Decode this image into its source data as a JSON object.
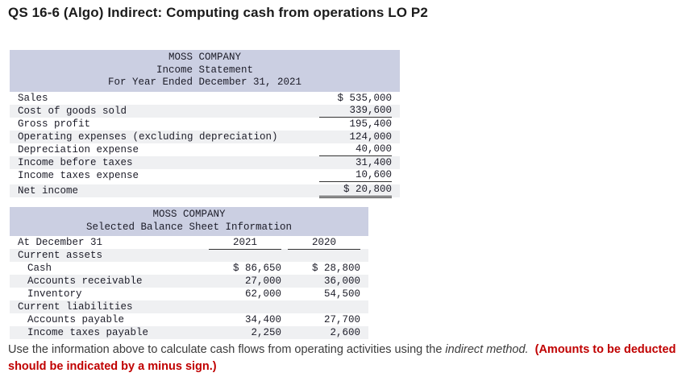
{
  "page": {
    "title": "QS 16-6 (Algo) Indirect: Computing cash from operations LO P2"
  },
  "income_statement": {
    "header": [
      "MOSS COMPANY",
      "Income Statement",
      "For Year Ended December 31, 2021"
    ],
    "rows": [
      {
        "label": "Sales",
        "value": "$ 535,000"
      },
      {
        "label": "Cost of goods sold",
        "value": "339,600"
      },
      {
        "label": "Gross profit",
        "value": "195,400"
      },
      {
        "label": "Operating expenses (excluding depreciation)",
        "value": "124,000"
      },
      {
        "label": "Depreciation expense",
        "value": "40,000"
      },
      {
        "label": "Income before taxes",
        "value": "31,400"
      },
      {
        "label": "Income taxes expense",
        "value": "10,600"
      },
      {
        "label": "Net income",
        "value": "$ 20,800"
      }
    ]
  },
  "balance_sheet": {
    "header": [
      "MOSS COMPANY",
      "Selected Balance Sheet Information"
    ],
    "col_header": {
      "label": "At December 31",
      "year1": "2021",
      "year2": "2020"
    },
    "rows": [
      {
        "label": "Current assets",
        "v2021": "",
        "v2020": ""
      },
      {
        "label": "Cash",
        "v2021": "$ 86,650",
        "v2020": "$ 28,800"
      },
      {
        "label": "Accounts receivable",
        "v2021": "27,000",
        "v2020": "36,000"
      },
      {
        "label": "Inventory",
        "v2021": "62,000",
        "v2020": "54,500"
      },
      {
        "label": "Current liabilities",
        "v2021": "",
        "v2020": ""
      },
      {
        "label": "Accounts payable",
        "v2021": "34,400",
        "v2020": "27,700"
      },
      {
        "label": "Income taxes payable",
        "v2021": "2,250",
        "v2020": "2,600"
      }
    ]
  },
  "instructions": {
    "lead": "Use the information above to calculate cash flows from operating activities using the",
    "italic": " indirect method.",
    "warning": "(Amounts to be deducted should be indicated by a minus sign.)"
  }
}
